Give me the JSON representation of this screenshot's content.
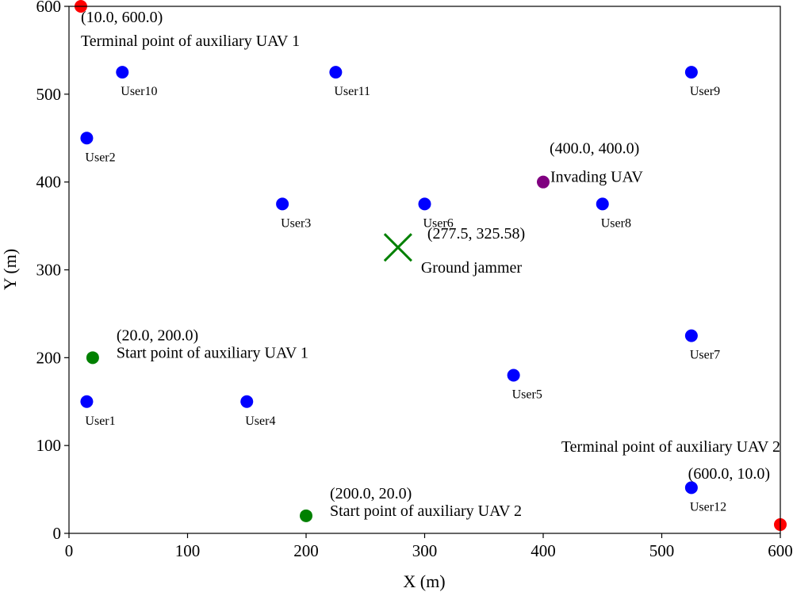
{
  "chart_data": {
    "type": "scatter",
    "xlabel": "X (m)",
    "ylabel": "Y (m)",
    "xlim": [
      0,
      600
    ],
    "ylim": [
      0,
      600
    ],
    "xticks": [
      "0",
      "100",
      "200",
      "300",
      "400",
      "500",
      "600"
    ],
    "yticks": [
      "0",
      "100",
      "200",
      "300",
      "400",
      "500",
      "600"
    ],
    "grid": false,
    "colors": {
      "user": "#0000ff",
      "start": "#008000",
      "terminal": "#ff0000",
      "invader": "#800080",
      "jammer": "#008000"
    },
    "users": [
      {
        "label": "User1",
        "x": 15,
        "y": 150
      },
      {
        "label": "User2",
        "x": 15,
        "y": 450
      },
      {
        "label": "User3",
        "x": 180,
        "y": 375
      },
      {
        "label": "User4",
        "x": 150,
        "y": 150
      },
      {
        "label": "User5",
        "x": 375,
        "y": 180
      },
      {
        "label": "User6",
        "x": 300,
        "y": 375
      },
      {
        "label": "User7",
        "x": 525,
        "y": 225
      },
      {
        "label": "User8",
        "x": 450,
        "y": 375
      },
      {
        "label": "User9",
        "x": 525,
        "y": 525
      },
      {
        "label": "User10",
        "x": 45,
        "y": 525
      },
      {
        "label": "User11",
        "x": 225,
        "y": 525
      },
      {
        "label": "User12",
        "x": 525,
        "y": 52
      }
    ],
    "special_points": [
      {
        "kind": "start",
        "x": 20,
        "y": 200,
        "coord_text": "(20.0, 200.0)",
        "label": "Start point of auxiliary UAV 1"
      },
      {
        "kind": "start",
        "x": 200,
        "y": 20,
        "coord_text": "(200.0, 20.0)",
        "label": "Start point of auxiliary UAV 2"
      },
      {
        "kind": "terminal",
        "x": 10,
        "y": 600,
        "coord_text": "(10.0, 600.0)",
        "label": "Terminal point of auxiliary UAV 1"
      },
      {
        "kind": "terminal",
        "x": 600,
        "y": 10,
        "coord_text": "(600.0, 10.0)",
        "label": "Terminal point of auxiliary UAV 2"
      },
      {
        "kind": "invader",
        "x": 400,
        "y": 400,
        "coord_text": "(400.0, 400.0)",
        "label": "Invading UAV"
      }
    ],
    "jammer": {
      "x": 277.5,
      "y": 325.58,
      "coord_text": "(277.5, 325.58)",
      "label": "Ground jammer"
    }
  }
}
